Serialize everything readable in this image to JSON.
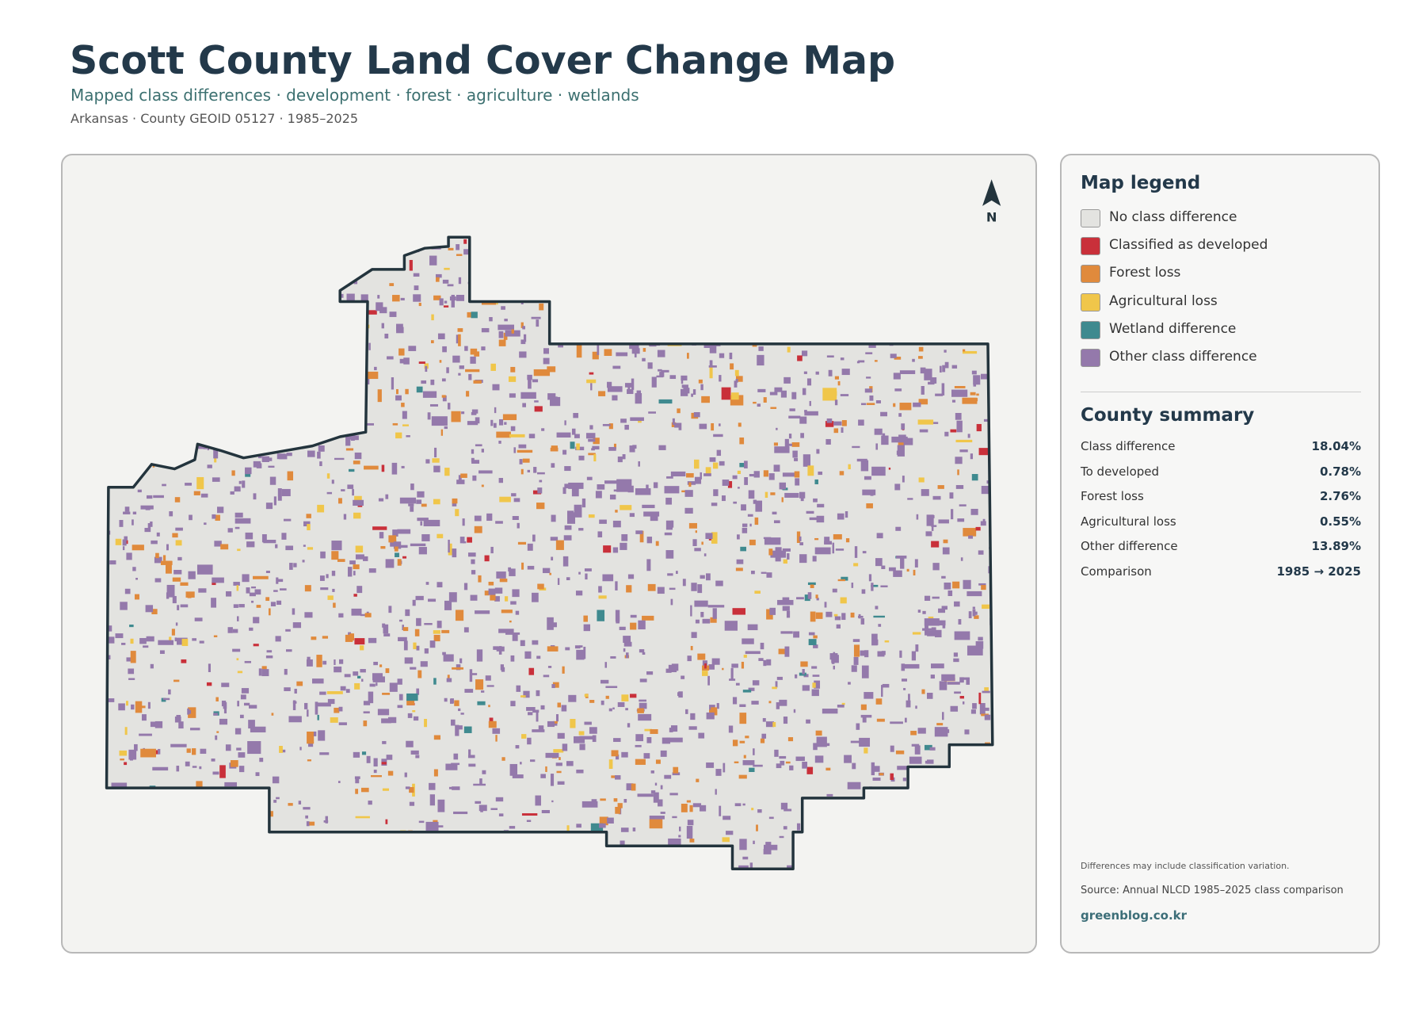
{
  "header": {
    "title": "Scott County Land Cover Change Map",
    "subtitle": "Mapped class differences · development · forest · agriculture · wetlands",
    "meta": "Arkansas · County GEOID 05127 · 1985–2025"
  },
  "map": {
    "north_label": "N"
  },
  "legend": {
    "title": "Map legend",
    "items": [
      {
        "label": "No class difference",
        "color": "#e3e3e0"
      },
      {
        "label": "Classified as developed",
        "color": "#c9303a"
      },
      {
        "label": "Forest loss",
        "color": "#e08a3c"
      },
      {
        "label": "Agricultural loss",
        "color": "#f0c64a"
      },
      {
        "label": "Wetland difference",
        "color": "#3f8a8f"
      },
      {
        "label": "Other class difference",
        "color": "#9479ab"
      }
    ]
  },
  "summary": {
    "title": "County summary",
    "rows": [
      {
        "label": "Class difference",
        "value": "18.04%"
      },
      {
        "label": "To developed",
        "value": "0.78%"
      },
      {
        "label": "Forest loss",
        "value": "2.76%"
      },
      {
        "label": "Agricultural loss",
        "value": "0.55%"
      },
      {
        "label": "Other difference",
        "value": "13.89%"
      },
      {
        "label": "Comparison",
        "value": "1985 → 2025"
      }
    ]
  },
  "notes": {
    "caveat": "Differences may include classification variation.",
    "source": "Source: Annual NLCD 1985–2025 class comparison",
    "site": "greenblog.co.kr"
  }
}
